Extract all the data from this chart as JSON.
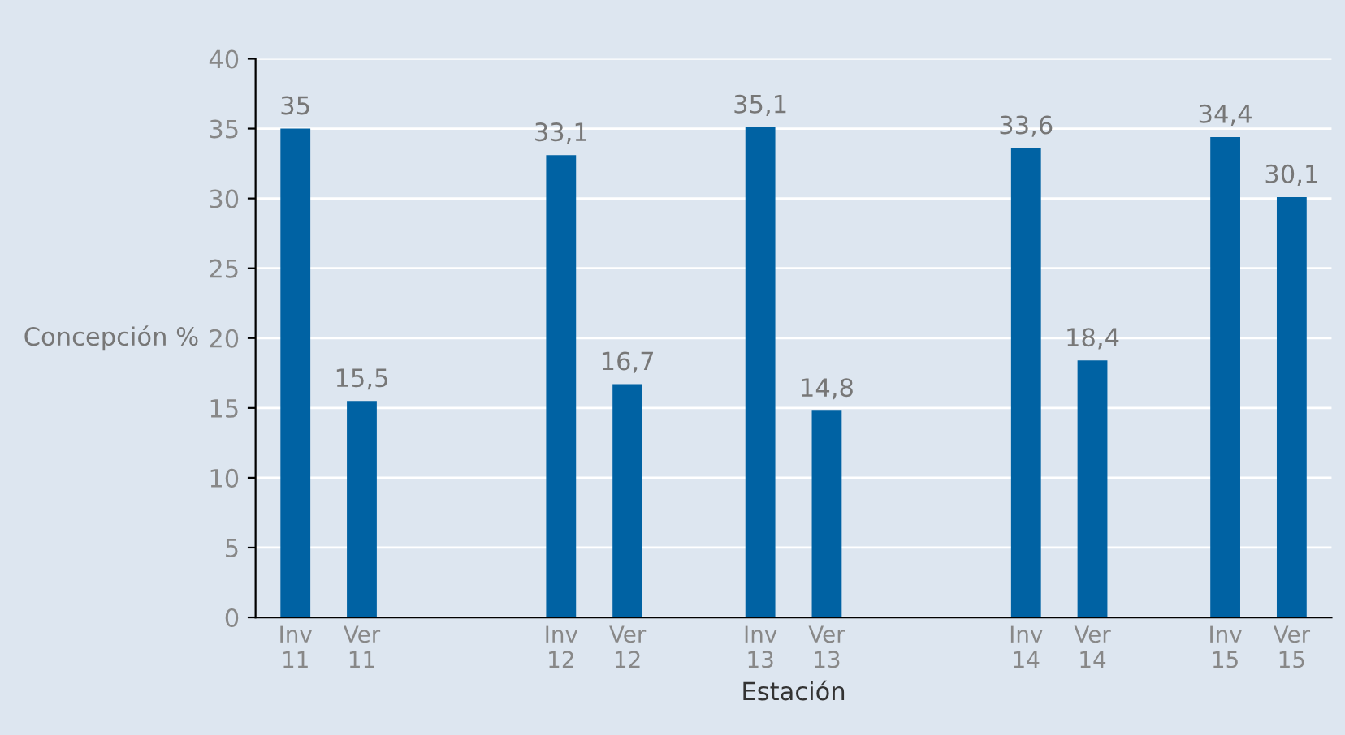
{
  "chart_data": {
    "type": "bar",
    "xlabel": "Estación",
    "ylabel": "Concepción %",
    "categories": [
      "Inv\n11",
      "Ver\n11",
      null,
      null,
      "Inv\n12",
      "Ver\n12",
      null,
      "Inv\n13",
      "Ver\n13",
      null,
      null,
      "Inv\n14",
      "Ver\n14",
      null,
      "Inv\n15",
      "Ver\n15"
    ],
    "values": [
      35,
      15.5,
      null,
      null,
      33.1,
      16.7,
      null,
      35.1,
      14.8,
      null,
      null,
      33.6,
      18.4,
      null,
      34.4,
      30.1
    ],
    "value_labels": [
      "35",
      "15,5",
      null,
      null,
      "33,1",
      "16,7",
      null,
      "35,1",
      "14,8",
      null,
      null,
      "33,6",
      "18,4",
      null,
      "34,4",
      "30,1"
    ],
    "color": "#0062a3",
    "ylim": [
      0,
      40
    ],
    "yticks": [
      0,
      5,
      10,
      15,
      20,
      25,
      30,
      35,
      40
    ],
    "grid": "y"
  }
}
